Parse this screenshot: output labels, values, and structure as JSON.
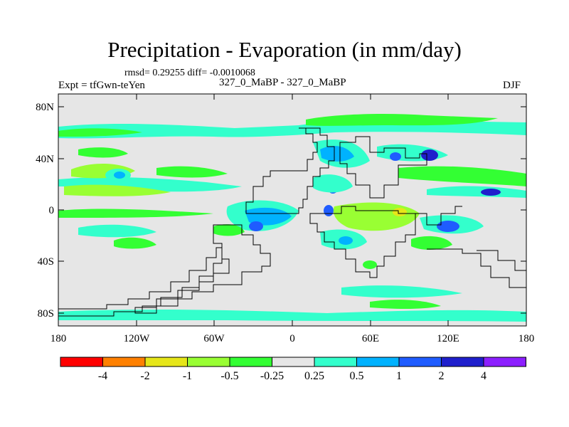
{
  "title": "Precipitation - Evaporation (in mm/day)",
  "stats": "rmsd= 0.29255  diff= -0.0010068",
  "expt": "Expt = tfGwn-teYen",
  "runs": "327_0_MaBP - 327_0_MaBP",
  "season": "DJF",
  "map": {
    "lon_range": [
      -180,
      180
    ],
    "lat_range": [
      -90,
      90
    ],
    "lat_ticks": [
      "80N",
      "40N",
      "0",
      "40S",
      "80S"
    ],
    "lon_ticks": [
      "180",
      "120W",
      "60W",
      "0",
      "60E",
      "120E",
      "180"
    ]
  },
  "colorbar": {
    "labels": [
      "-4",
      "-2",
      "-1",
      "-0.5",
      "-0.25",
      "0.25",
      "0.5",
      "1",
      "2",
      "4"
    ],
    "colors": [
      "#ff0000",
      "#ff8000",
      "#e6e619",
      "#99ff33",
      "#33ff33",
      "#e6e6e6",
      "#33ffcc",
      "#00b2ff",
      "#1f5cff",
      "#1f1fcc",
      "#8c1fff"
    ]
  },
  "colors": {
    "background": "#e6e6e6",
    "cyan": "#33ffcc",
    "light_green": "#99ff33",
    "green": "#33ff33",
    "light_blue": "#00b2ff",
    "blue": "#1f5cff",
    "dark_blue": "#1f1fcc",
    "yellow": "#e6e619"
  }
}
